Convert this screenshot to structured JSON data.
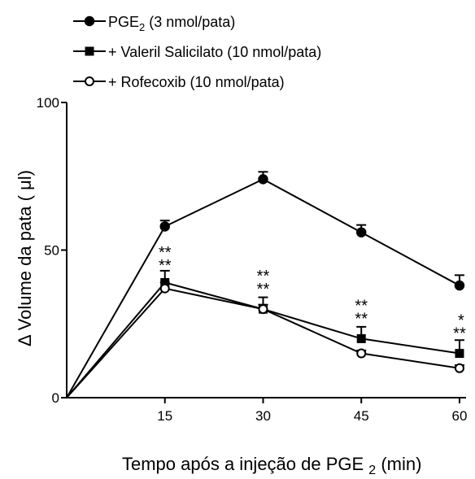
{
  "chart_data": {
    "type": "line",
    "title": "",
    "xlabel": "Tempo após a injeção de PGE 2 (min)",
    "xlabel_parts": {
      "main": "Tempo após a injeção de PGE",
      "sub": "2",
      "tail": "(min)"
    },
    "ylabel": "Δ Volume da pata ( μl)",
    "x": [
      0,
      15,
      30,
      45,
      60
    ],
    "x_ticks": [
      "15",
      "30",
      "45",
      "60"
    ],
    "x_tick_values": [
      15,
      30,
      45,
      60
    ],
    "y_ticks": [
      "0",
      "50",
      "100"
    ],
    "y_tick_values": [
      0,
      50,
      100
    ],
    "xlim": [
      0,
      61
    ],
    "ylim": [
      0,
      100
    ],
    "grid": false,
    "legend_position": "top-left",
    "series": [
      {
        "name": "PGE2 (3 nmol/pata)",
        "name_parts": {
          "main": "PGE",
          "sub": "2",
          "tail": " (3 nmol/pata)"
        },
        "marker": "filled-circle",
        "values": [
          0,
          58,
          74,
          56,
          38
        ],
        "errors": [
          0,
          2,
          2.5,
          2.5,
          3.5
        ]
      },
      {
        "name": "+ Valeril Salicilato (10 nmol/pata)",
        "name_parts": {
          "main": "+ Valeril Salicilato (10 nmol/pata)",
          "sub": "",
          "tail": ""
        },
        "marker": "filled-square",
        "values": [
          0,
          39,
          30,
          20,
          15
        ],
        "errors": [
          0,
          4,
          4,
          4,
          4.5
        ]
      },
      {
        "name": "+ Rofecoxib (10 nmol/pata)",
        "name_parts": {
          "main": "+ Rofecoxib (10 nmol/pata)",
          "sub": "",
          "tail": ""
        },
        "marker": "open-circle",
        "values": [
          0,
          37,
          30,
          15,
          10
        ],
        "errors": [
          0,
          2,
          1.5,
          1,
          1
        ]
      }
    ],
    "annotations": [
      {
        "x": 15,
        "y": 43,
        "lines": [
          "**",
          "**"
        ]
      },
      {
        "x": 30,
        "y": 35,
        "lines": [
          "**",
          "**"
        ]
      },
      {
        "x": 45,
        "y": 25,
        "lines": [
          "**",
          "**"
        ]
      },
      {
        "x": 60,
        "y": 20,
        "lines": [
          "*",
          "**"
        ]
      }
    ]
  },
  "colors": {
    "line": "#000000",
    "background": "#ffffff"
  }
}
